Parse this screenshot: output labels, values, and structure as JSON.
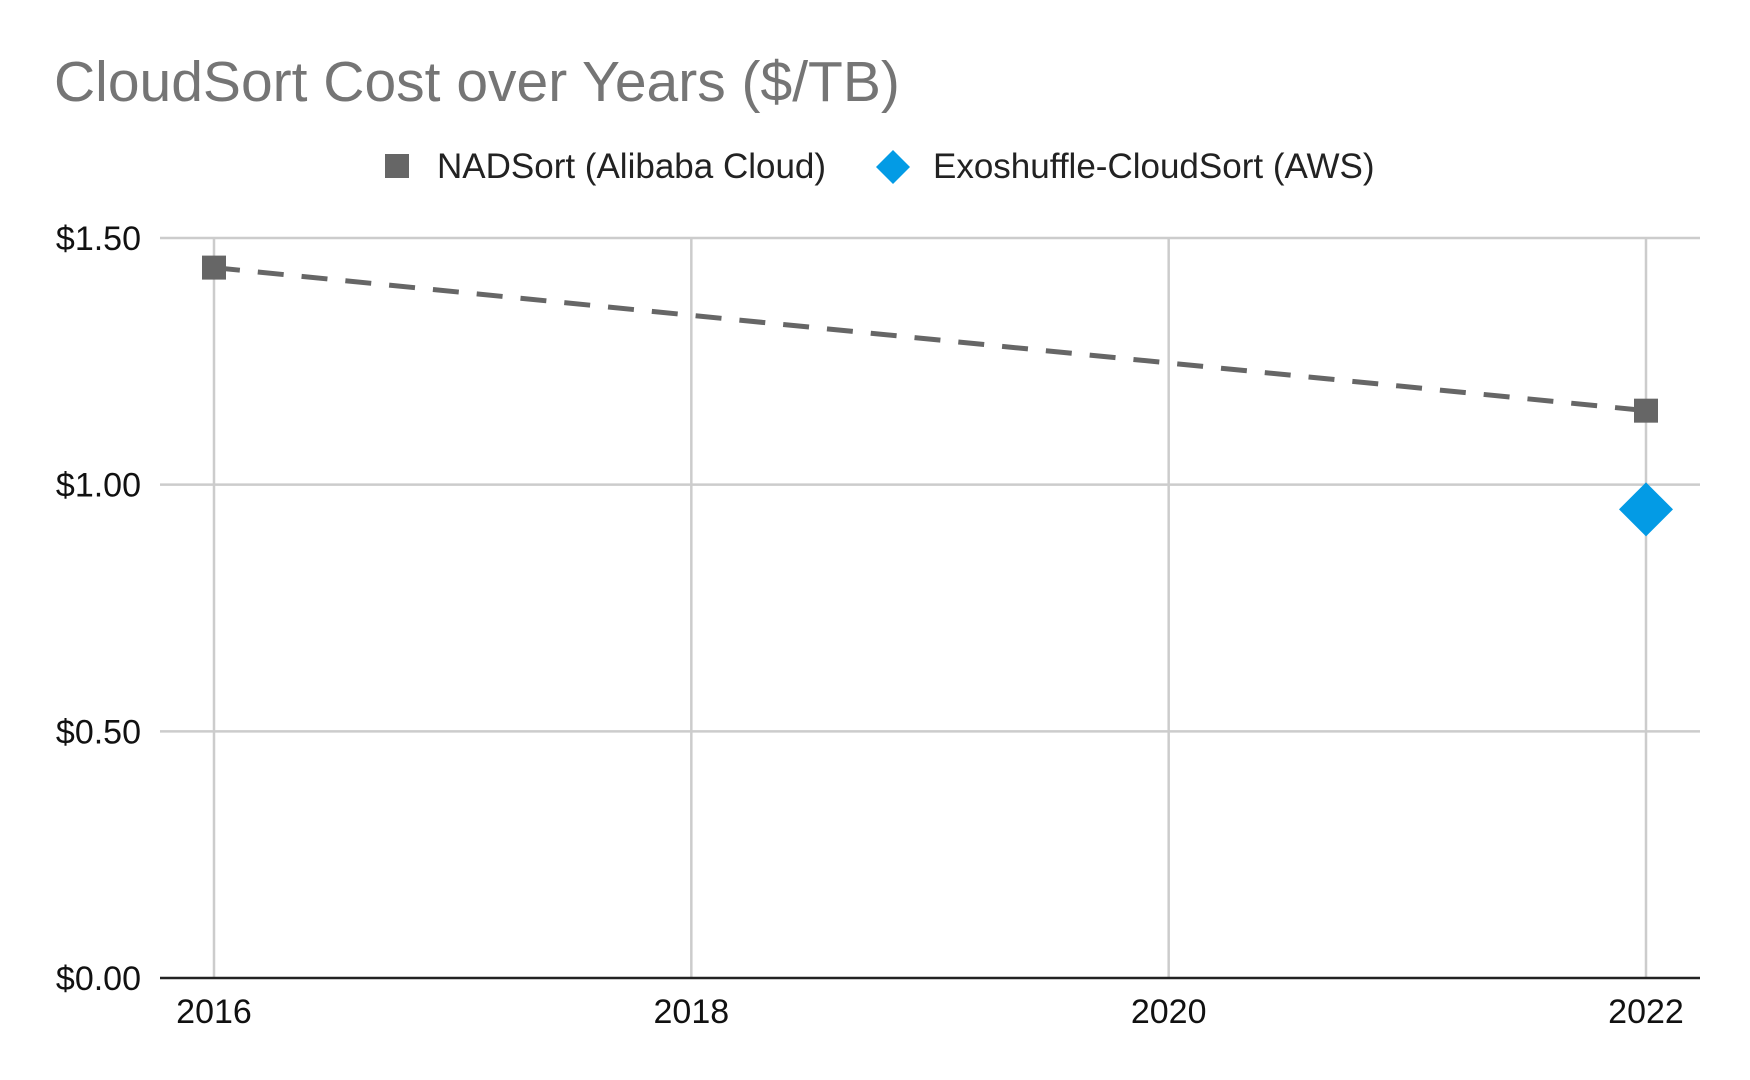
{
  "chart_data": {
    "type": "line",
    "title": "CloudSort Cost over Years ($/TB)",
    "xlabel": "",
    "ylabel": "",
    "x": [
      2016,
      2018,
      2020,
      2022
    ],
    "x_tick_labels": [
      "2016",
      "2018",
      "2020",
      "2022"
    ],
    "xlim": [
      2016,
      2022
    ],
    "ylim": [
      0,
      1.5
    ],
    "y_ticks": [
      0,
      0.5,
      1.0,
      1.5
    ],
    "y_tick_labels": [
      "$0.00",
      "$0.50",
      "$1.00",
      "$1.50"
    ],
    "grid": true,
    "legend_position": "top",
    "series": [
      {
        "name": "NADSort (Alibaba Cloud)",
        "color": "#666666",
        "marker": "square",
        "line_style": "dashed",
        "points": [
          {
            "x": 2016,
            "y": 1.44
          },
          {
            "x": 2022,
            "y": 1.15
          }
        ]
      },
      {
        "name": "Exoshuffle-CloudSort (AWS)",
        "color": "#039BE5",
        "marker": "diamond",
        "line_style": "none",
        "points": [
          {
            "x": 2022,
            "y": 0.95
          }
        ]
      }
    ]
  }
}
